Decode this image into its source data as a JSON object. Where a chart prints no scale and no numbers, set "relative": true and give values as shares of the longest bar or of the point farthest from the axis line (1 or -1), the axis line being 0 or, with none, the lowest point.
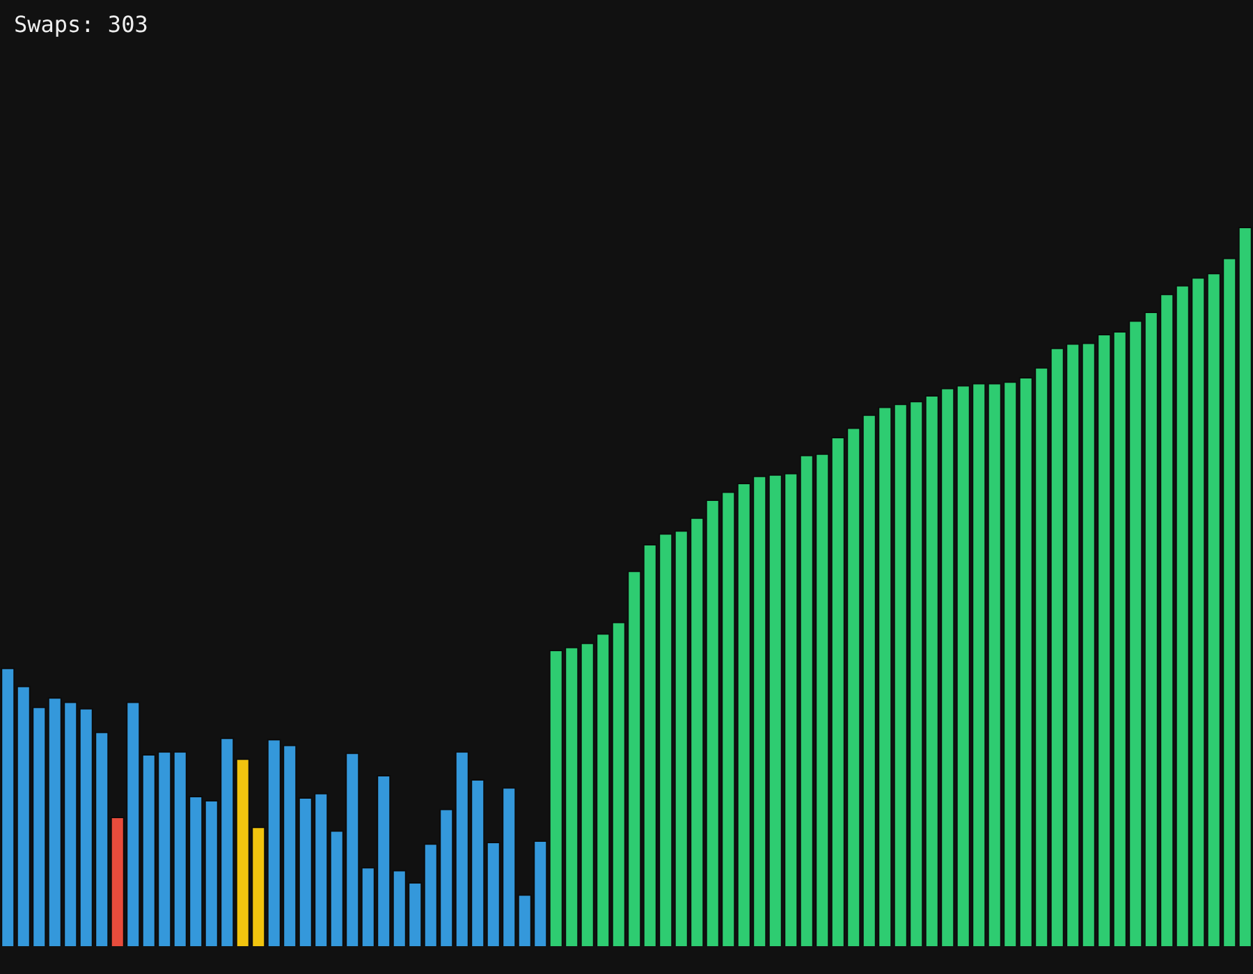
{
  "chart_data": {
    "type": "bar",
    "title": "Swaps: 303",
    "relative": true,
    "legend": false,
    "categories": [
      null,
      null,
      null,
      null,
      null,
      null,
      null,
      null,
      null,
      null,
      null,
      null,
      null,
      null,
      null,
      null,
      null,
      null,
      null,
      null,
      null,
      null,
      null,
      null,
      null,
      null,
      null,
      null,
      null,
      null,
      null,
      null,
      null,
      null,
      null,
      null,
      null,
      null,
      null,
      null,
      null,
      null,
      null,
      null,
      null,
      null,
      null,
      null,
      null,
      null,
      null,
      null,
      null,
      null,
      null,
      null,
      null,
      null,
      null,
      null,
      null,
      null,
      null,
      null,
      null,
      null,
      null,
      null,
      null,
      null,
      null,
      null,
      null,
      null,
      null,
      null,
      null,
      null,
      null,
      null
    ],
    "values": [
      0.387,
      0.362,
      0.333,
      0.346,
      0.34,
      0.331,
      0.298,
      0.18,
      0.34,
      0.267,
      0.271,
      0.271,
      0.209,
      0.203,
      0.29,
      0.261,
      0.166,
      0.288,
      0.28,
      0.207,
      0.213,
      0.161,
      0.269,
      0.11,
      0.238,
      0.106,
      0.089,
      0.143,
      0.191,
      0.271,
      0.232,
      0.145,
      0.221,
      0.072,
      0.147,
      0.412,
      0.416,
      0.422,
      0.435,
      0.451,
      0.522,
      0.559,
      0.574,
      0.578,
      0.596,
      0.621,
      0.632,
      0.644,
      0.654,
      0.656,
      0.658,
      0.683,
      0.685,
      0.708,
      0.721,
      0.739,
      0.75,
      0.754,
      0.758,
      0.766,
      0.776,
      0.78,
      0.783,
      0.783,
      0.785,
      0.791,
      0.805,
      0.832,
      0.838,
      0.839,
      0.851,
      0.855,
      0.87,
      0.882,
      0.907,
      0.919,
      0.93,
      0.936,
      0.957,
      1
    ],
    "colors": [
      "#3498db",
      "#3498db",
      "#3498db",
      "#3498db",
      "#3498db",
      "#3498db",
      "#3498db",
      "#e74c3c",
      "#3498db",
      "#3498db",
      "#3498db",
      "#3498db",
      "#3498db",
      "#3498db",
      "#3498db",
      "#f1c40f",
      "#f1c40f",
      "#3498db",
      "#3498db",
      "#3498db",
      "#3498db",
      "#3498db",
      "#3498db",
      "#3498db",
      "#3498db",
      "#3498db",
      "#3498db",
      "#3498db",
      "#3498db",
      "#3498db",
      "#3498db",
      "#3498db",
      "#3498db",
      "#3498db",
      "#3498db",
      "#2ecc71",
      "#2ecc71",
      "#2ecc71",
      "#2ecc71",
      "#2ecc71",
      "#2ecc71",
      "#2ecc71",
      "#2ecc71",
      "#2ecc71",
      "#2ecc71",
      "#2ecc71",
      "#2ecc71",
      "#2ecc71",
      "#2ecc71",
      "#2ecc71",
      "#2ecc71",
      "#2ecc71",
      "#2ecc71",
      "#2ecc71",
      "#2ecc71",
      "#2ecc71",
      "#2ecc71",
      "#2ecc71",
      "#2ecc71",
      "#2ecc71",
      "#2ecc71",
      "#2ecc71",
      "#2ecc71",
      "#2ecc71",
      "#2ecc71",
      "#2ecc71",
      "#2ecc71",
      "#2ecc71",
      "#2ecc71",
      "#2ecc71",
      "#2ecc71",
      "#2ecc71",
      "#2ecc71",
      "#2ecc71",
      "#2ecc71",
      "#2ecc71",
      "#2ecc71",
      "#2ecc71",
      "#2ecc71",
      "#2ecc71"
    ]
  }
}
